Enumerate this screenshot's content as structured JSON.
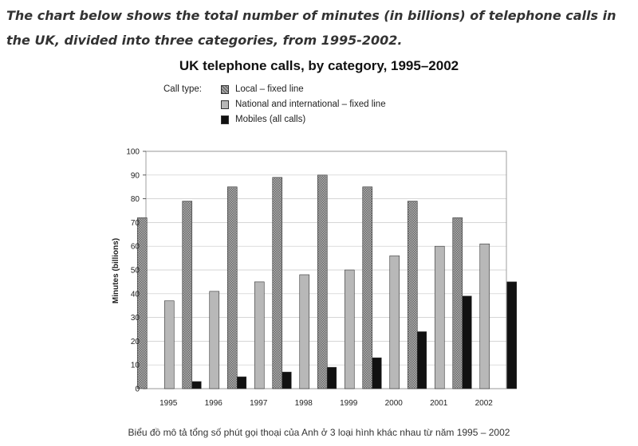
{
  "intro_text": "The chart below shows the total number of minutes (in billions) of telephone calls in the UK, divided into three categories, from 1995-2002.",
  "caption": "Biểu đồ mô tả tổng số phút gọi thoại của Anh ở 3 loại hình khác nhau từ năm 1995 – 2002",
  "colors": {
    "local": "#9a9a9a",
    "national": "#b8b8b8",
    "mobile": "#111111"
  },
  "chart_data": {
    "type": "bar",
    "title": "UK telephone calls, by category, 1995–2002",
    "legend_title": "Call type:",
    "legend_position": "top-left",
    "xlabel": "",
    "ylabel": "Minutes (billions)",
    "ylim": [
      0,
      100
    ],
    "yticks": [
      0,
      10,
      20,
      30,
      40,
      50,
      60,
      70,
      80,
      90,
      100
    ],
    "grid": true,
    "categories": [
      "1995",
      "1996",
      "1997",
      "1998",
      "1999",
      "2000",
      "2001",
      "2002"
    ],
    "series": [
      {
        "name": "Local – fixed line",
        "values": [
          72,
          79,
          85,
          89,
          90,
          85,
          79,
          72
        ]
      },
      {
        "name": "National and international – fixed line",
        "values": [
          37,
          41,
          45,
          48,
          50,
          56,
          60,
          61
        ]
      },
      {
        "name": "Mobiles (all calls)",
        "values": [
          3,
          5,
          7,
          9,
          13,
          24,
          39,
          45
        ]
      }
    ]
  }
}
